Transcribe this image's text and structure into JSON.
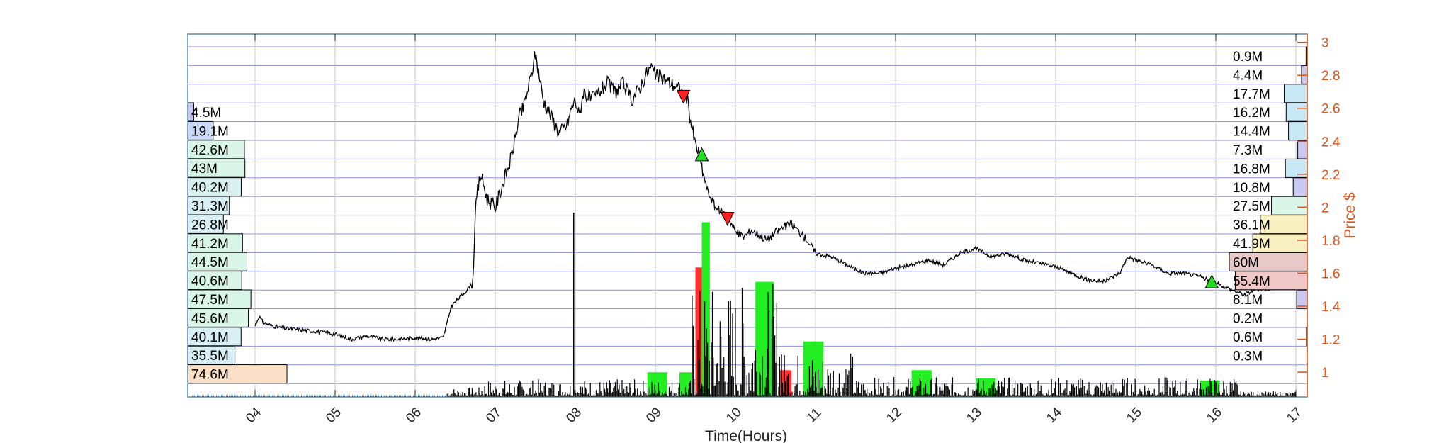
{
  "chart_data": {
    "type": "line",
    "xlabel": "Time(Hours)",
    "ylabel": "Price $",
    "x_ticks": [
      "04",
      "05",
      "06",
      "07",
      "08",
      "09",
      "10",
      "11",
      "12",
      "13",
      "14",
      "15",
      "16",
      "17"
    ],
    "xlim": [
      3.15,
      17.0
    ],
    "ylim": [
      0.85,
      3.05
    ],
    "y_ticks": [
      "1",
      "1.2",
      "1.4",
      "1.6",
      "1.8",
      "2",
      "2.2",
      "2.4",
      "2.6",
      "2.8",
      "3"
    ],
    "grid": true,
    "price_series": {
      "name": "",
      "x": [
        4.0,
        4.05,
        4.1,
        4.3,
        4.5,
        4.7,
        4.9,
        5.0,
        5.2,
        5.4,
        5.6,
        5.8,
        6.0,
        6.2,
        6.35,
        6.4,
        6.45,
        6.55,
        6.65,
        6.72,
        6.75,
        6.78,
        6.82,
        6.9,
        7.0,
        7.1,
        7.2,
        7.3,
        7.35,
        7.4,
        7.45,
        7.5,
        7.55,
        7.6,
        7.7,
        7.8,
        7.9,
        7.95,
        8.0,
        8.05,
        8.1,
        8.2,
        8.3,
        8.4,
        8.5,
        8.6,
        8.7,
        8.8,
        8.9,
        8.95,
        9.0,
        9.1,
        9.2,
        9.3,
        9.4,
        9.45,
        9.5,
        9.55,
        9.6,
        9.65,
        9.7,
        9.75,
        9.8,
        9.9,
        10.0,
        10.1,
        10.2,
        10.3,
        10.4,
        10.5,
        10.6,
        10.7,
        10.8,
        10.9,
        11.0,
        11.2,
        11.4,
        11.6,
        11.8,
        12.0,
        12.2,
        12.4,
        12.6,
        12.8,
        13.0,
        13.2,
        13.4,
        13.6,
        13.8,
        14.0,
        14.2,
        14.4,
        14.6,
        14.8,
        14.9,
        15.0,
        15.2,
        15.4,
        15.6,
        15.8,
        15.95,
        16.1,
        16.3,
        16.35,
        16.5,
        16.7,
        16.9,
        17.0
      ],
      "y": [
        1.28,
        1.34,
        1.3,
        1.27,
        1.26,
        1.25,
        1.24,
        1.23,
        1.2,
        1.22,
        1.2,
        1.2,
        1.21,
        1.2,
        1.21,
        1.3,
        1.4,
        1.45,
        1.5,
        1.55,
        1.95,
        2.1,
        2.2,
        2.05,
        2.0,
        2.15,
        2.3,
        2.55,
        2.6,
        2.7,
        2.8,
        2.93,
        2.8,
        2.65,
        2.55,
        2.45,
        2.5,
        2.6,
        2.65,
        2.55,
        2.7,
        2.65,
        2.7,
        2.75,
        2.7,
        2.75,
        2.65,
        2.72,
        2.82,
        2.85,
        2.8,
        2.78,
        2.75,
        2.72,
        2.65,
        2.5,
        2.38,
        2.32,
        2.2,
        2.1,
        2.05,
        2.0,
        1.98,
        1.95,
        1.85,
        1.82,
        1.86,
        1.83,
        1.8,
        1.85,
        1.88,
        1.9,
        1.85,
        1.8,
        1.72,
        1.7,
        1.65,
        1.6,
        1.6,
        1.63,
        1.65,
        1.68,
        1.65,
        1.72,
        1.75,
        1.7,
        1.72,
        1.68,
        1.66,
        1.64,
        1.6,
        1.56,
        1.55,
        1.6,
        1.7,
        1.68,
        1.65,
        1.6,
        1.6,
        1.58,
        1.55,
        1.52,
        1.48,
        1.47,
        1.5,
        1.51,
        1.53,
        1.55
      ]
    },
    "markers": [
      {
        "type": "sell",
        "x": 9.35,
        "y": 2.67,
        "color": "#ff2020"
      },
      {
        "type": "buy",
        "x": 9.58,
        "y": 2.32,
        "color": "#22dd22"
      },
      {
        "type": "sell",
        "x": 9.9,
        "y": 1.93,
        "color": "#ff2020"
      },
      {
        "type": "buy",
        "x": 15.95,
        "y": 1.55,
        "color": "#22dd22"
      }
    ],
    "volume_bars": [
      {
        "x0": 9.5,
        "x1": 9.58,
        "height": 0.63,
        "color": "#ff3030"
      },
      {
        "x0": 9.58,
        "x1": 9.68,
        "height": 0.85,
        "color": "#22ee22"
      },
      {
        "x0": 10.25,
        "x1": 10.48,
        "height": 0.56,
        "color": "#22ee22"
      },
      {
        "x0": 10.85,
        "x1": 11.1,
        "height": 0.27,
        "color": "#22ee22"
      },
      {
        "x0": 8.9,
        "x1": 9.15,
        "height": 0.12,
        "color": "#22ee22"
      },
      {
        "x0": 9.3,
        "x1": 9.45,
        "height": 0.12,
        "color": "#22ee22"
      },
      {
        "x0": 10.55,
        "x1": 10.7,
        "height": 0.13,
        "color": "#ff3030"
      },
      {
        "x0": 12.2,
        "x1": 12.45,
        "height": 0.13,
        "color": "#22ee22"
      },
      {
        "x0": 13.0,
        "x1": 13.25,
        "height": 0.09,
        "color": "#22ee22"
      },
      {
        "x0": 15.8,
        "x1": 16.05,
        "height": 0.08,
        "color": "#22ee22"
      }
    ],
    "volume_profile_left": {
      "labels": [
        "4.5M",
        "19.1M",
        "42.6M",
        "43M",
        "40.2M",
        "31.3M",
        "26.8M",
        "41.2M",
        "44.5M",
        "40.6M",
        "47.5M",
        "45.6M",
        "40.1M",
        "35.5M",
        "74.6M"
      ],
      "values": [
        4.5,
        19.1,
        42.6,
        43,
        40.2,
        31.3,
        26.8,
        41.2,
        44.5,
        40.6,
        47.5,
        45.6,
        40.1,
        35.5,
        74.6
      ],
      "colors": [
        "#c8c8f0",
        "#c8d8f5",
        "#d8f5e8",
        "#d8f5e8",
        "#d8f0f0",
        "#d8f0f5",
        "#d8f0f5",
        "#d8f5e8",
        "#d8f5e8",
        "#d8f5e8",
        "#d8f5e8",
        "#d8f5e8",
        "#d8f0f5",
        "#d8f0f5",
        "#fbe0c8"
      ],
      "levels_top": [
        2.67,
        2.56,
        2.45,
        2.34,
        2.23,
        2.12,
        2.01,
        1.9,
        1.79,
        1.68,
        1.57,
        1.46,
        1.35,
        1.24,
        1.13
      ]
    },
    "volume_profile_right": {
      "labels": [
        "0.9M",
        "4.4M",
        "17.7M",
        "16.2M",
        "14.4M",
        "7.3M",
        "16.8M",
        "10.8M",
        "27.5M",
        "36.1M",
        "41.9M",
        "60M",
        "55.4M",
        "8.1M",
        "0.2M",
        "0.6M",
        "0.3M"
      ],
      "values": [
        0.9,
        4.4,
        17.7,
        16.2,
        14.4,
        7.3,
        16.8,
        10.8,
        27.5,
        36.1,
        41.9,
        60,
        55.4,
        8.1,
        0.2,
        0.6,
        0.3
      ],
      "colors": [
        "#c8c8f0",
        "#c8c8f0",
        "#c8e8f5",
        "#c8e8f5",
        "#c8e8f5",
        "#c8c8f0",
        "#c8e8f5",
        "#c8c8f0",
        "#d8f5e8",
        "#f8f0c0",
        "#f8f0c0",
        "#e8c8c8",
        "#f0c8c8",
        "#c8c8f0",
        "#c8c8f0",
        "#c8c8f0",
        "#c8c8f0"
      ]
    },
    "colors": {
      "price_line": "#000000",
      "price_axis": "#d95319",
      "grid_h": "#6a6ad8",
      "grid_v": "#c8c8c8",
      "volume_black": "#000000"
    }
  }
}
